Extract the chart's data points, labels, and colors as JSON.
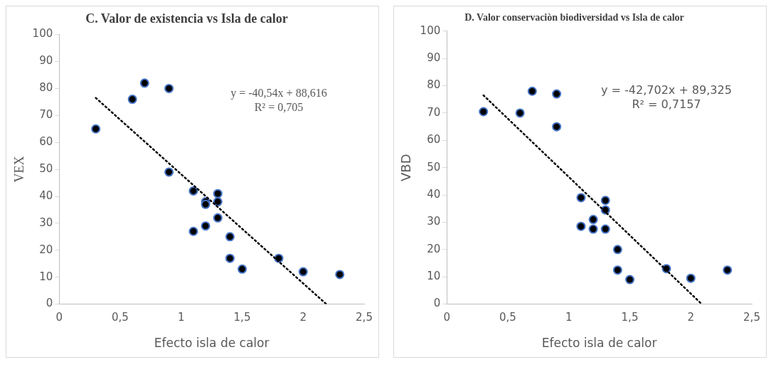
{
  "chart_data": [
    {
      "type": "scatter",
      "title": "C. Valor de existencia vs Isla de calor",
      "xlabel": "Efecto isla de calor",
      "ylabel": "VEX",
      "xlim": [
        0,
        2.5
      ],
      "ylim": [
        0,
        100
      ],
      "xticks": [
        0,
        {
          "value": 0.5,
          "label": "0,5"
        },
        1,
        {
          "value": 1.5,
          "label": "1,5"
        },
        2,
        {
          "value": 2.5,
          "label": "2,5"
        }
      ],
      "yticks": [
        0,
        10,
        20,
        30,
        40,
        50,
        60,
        70,
        80,
        90,
        100
      ],
      "grid": false,
      "legend": false,
      "marker": "circle",
      "annotations": [
        "y = -40,54x + 88,616",
        "R² = 0,705"
      ],
      "series": [
        {
          "color": "#000000",
          "x": [
            0.3,
            0.6,
            0.7,
            0.9,
            0.9,
            1.1,
            1.1,
            1.2,
            1.2,
            1.2,
            1.3,
            1.3,
            1.3,
            1.4,
            1.4,
            1.5,
            1.8,
            2.0,
            2.3
          ],
          "values": [
            65,
            76,
            82,
            80,
            49,
            42,
            27,
            38,
            37,
            29,
            41,
            38,
            32,
            25,
            17,
            13,
            17,
            12,
            11
          ]
        },
        {
          "type": "line",
          "color": "#000000",
          "line_style": "dotted",
          "marker": "none",
          "x": [
            0.3,
            2.19
          ],
          "values": [
            76.5,
            0
          ]
        }
      ]
    },
    {
      "type": "scatter",
      "title": "D. Valor conservaciòn biodiversidad vs Isla de calor",
      "xlabel": "Efecto isla de calor",
      "ylabel": "VBD",
      "xlim": [
        0,
        2.5
      ],
      "ylim": [
        0,
        100
      ],
      "xticks": [
        0,
        {
          "value": 0.5,
          "label": "0,5"
        },
        1,
        {
          "value": 1.5,
          "label": "1,5"
        },
        2,
        {
          "value": 2.5,
          "label": "2,5"
        }
      ],
      "yticks": [
        0,
        10,
        20,
        30,
        40,
        50,
        60,
        70,
        80,
        90,
        100
      ],
      "grid": false,
      "legend": false,
      "marker": "circle",
      "annotations": [
        "y = -42,702x + 89,325",
        "R² = 0,7157"
      ],
      "series": [
        {
          "color": "#000000",
          "x": [
            0.3,
            0.6,
            0.7,
            0.9,
            0.9,
            1.1,
            1.1,
            1.2,
            1.2,
            1.3,
            1.3,
            1.3,
            1.4,
            1.4,
            1.5,
            1.8,
            2.0,
            2.3
          ],
          "values": [
            70.5,
            70,
            78,
            77,
            65,
            39,
            28.5,
            31,
            27.5,
            38,
            34.5,
            27.5,
            20,
            12.5,
            9,
            13,
            9.5,
            12.5
          ]
        },
        {
          "type": "line",
          "color": "#000000",
          "line_style": "dotted",
          "marker": "none",
          "x": [
            0.3,
            2.09
          ],
          "values": [
            76.5,
            0
          ]
        }
      ]
    }
  ]
}
